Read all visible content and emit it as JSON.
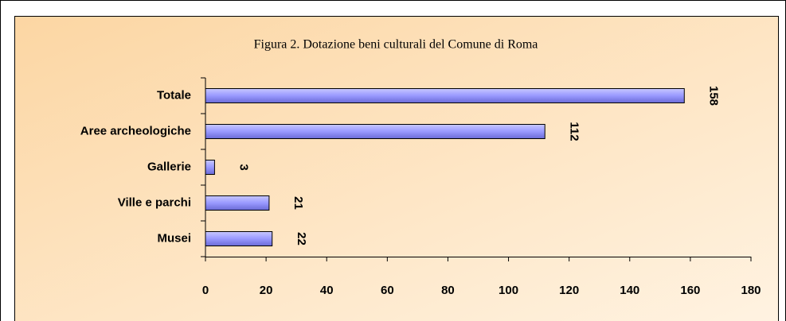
{
  "chart_data": {
    "type": "bar",
    "orientation": "horizontal",
    "title": "Figura 2. Dotazione beni culturali del Comune di Roma",
    "categories": [
      "Totale",
      "Aree archeologiche",
      "Gallerie",
      "Ville e parchi",
      "Musei"
    ],
    "values": [
      158,
      112,
      3,
      21,
      22
    ],
    "color": "#9999ff",
    "xlim": [
      0,
      180
    ],
    "xticks": [
      0,
      20,
      40,
      60,
      80,
      100,
      120,
      140,
      160,
      180
    ]
  }
}
